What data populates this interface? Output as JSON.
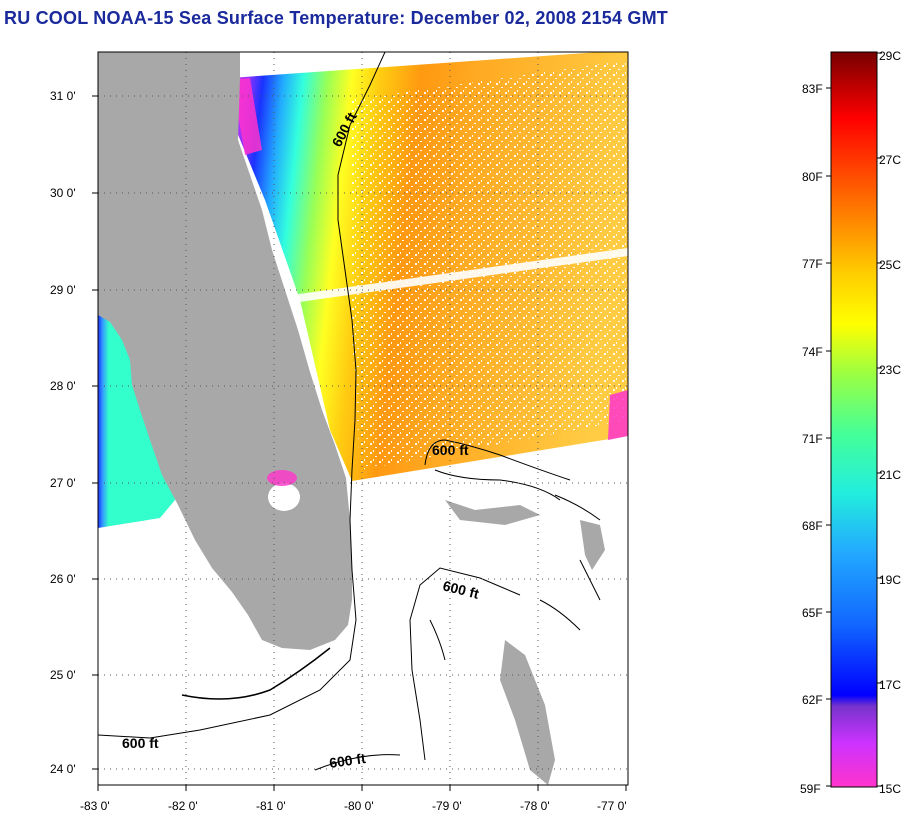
{
  "title": "RU COOL  NOAA-15  Sea Surface Temperature:  December 02, 2008 2154 GMT",
  "map": {
    "lon_labels": [
      "-83 0'",
      "-82 0'",
      "-81 0'",
      "-80 0'",
      "-79 0'",
      "-78 0'",
      "-77 0'"
    ],
    "lat_labels": [
      "31 0'",
      "30 0'",
      "29 0'",
      "28 0'",
      "27 0'",
      "26 0'",
      "25 0'",
      "24 0'"
    ],
    "contour_label": "600 ft",
    "land_color": "#a8a8a8",
    "no_data_color": "#ffffff"
  },
  "colorbar": {
    "celsius_labels": [
      "29C",
      "27C",
      "25C",
      "23C",
      "21C",
      "19C",
      "17C",
      "15C"
    ],
    "fahrenheit_labels": [
      "83F",
      "80F",
      "77F",
      "74F",
      "71F",
      "68F",
      "65F",
      "62F",
      "59F"
    ]
  }
}
